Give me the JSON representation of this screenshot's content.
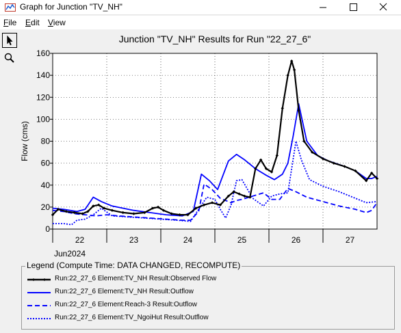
{
  "window": {
    "title": "Graph for Junction \"TV_NH\"",
    "menu": [
      {
        "label": "File",
        "accel": "F",
        "rest": "ile"
      },
      {
        "label": "Edit",
        "accel": "E",
        "rest": "dit"
      },
      {
        "label": "View",
        "accel": "V",
        "rest": "iew"
      }
    ]
  },
  "toolbar": {
    "tools": [
      "pointer-arrow-icon",
      "zoom-magnifier-icon"
    ]
  },
  "colors": {
    "observed": "#000000",
    "series": "#0000ff",
    "grid": "#000000",
    "window_bg": "#f0f0f0",
    "plot_bg": "#ffffff"
  },
  "chart_data": {
    "type": "line",
    "title": "Junction \"TV_NH\" Results for Run \"22_27_6\"",
    "ylabel": "Flow (cms)",
    "xlabel": "",
    "ylim": [
      0,
      160
    ],
    "yticks": [
      0,
      20,
      40,
      60,
      80,
      100,
      120,
      140,
      160
    ],
    "xlim": [
      21.5,
      27.5
    ],
    "x_ticks": [
      22,
      23,
      24,
      25,
      26,
      27
    ],
    "x_tick_labels": [
      "22",
      "23",
      "24",
      "25",
      "26",
      "27"
    ],
    "x_month_label": "Jun2024",
    "grid": true,
    "series": [
      {
        "name": "Run:22_27_6 Element:TV_NH Result:Observed Flow",
        "style": "solid-markers",
        "x": [
          21.5,
          21.6,
          21.75,
          21.9,
          22.05,
          22.15,
          22.25,
          22.35,
          22.45,
          22.6,
          22.8,
          23.0,
          23.2,
          23.35,
          23.45,
          23.55,
          23.7,
          23.85,
          24.0,
          24.15,
          24.3,
          24.45,
          24.6,
          24.75,
          24.85,
          24.95,
          25.05,
          25.15,
          25.25,
          25.35,
          25.45,
          25.55,
          25.65,
          25.75,
          25.85,
          25.92,
          25.97,
          26.05,
          26.15,
          26.3,
          26.5,
          26.7,
          26.9,
          27.1,
          27.3,
          27.4,
          27.5
        ],
        "y": [
          13,
          18,
          16,
          15,
          14,
          16,
          21,
          22,
          19,
          17,
          15,
          14,
          15,
          19,
          20,
          17,
          14,
          13,
          13,
          19,
          22,
          24,
          22,
          30,
          34,
          32,
          30,
          29,
          55,
          63,
          55,
          52,
          67,
          110,
          140,
          153,
          145,
          108,
          80,
          70,
          64,
          60,
          57,
          53,
          44,
          51,
          46
        ]
      },
      {
        "name": "Run:22_27_6 Element:TV_NH Result:Outflow",
        "style": "solid",
        "x": [
          21.5,
          21.7,
          21.95,
          22.1,
          22.25,
          22.4,
          22.6,
          22.8,
          23.0,
          23.3,
          23.6,
          23.9,
          24.1,
          24.25,
          24.4,
          24.55,
          24.75,
          24.9,
          25.05,
          25.25,
          25.45,
          25.6,
          25.75,
          25.85,
          25.95,
          26.05,
          26.2,
          26.4,
          26.6,
          26.9,
          27.1,
          27.3,
          27.4,
          27.5
        ],
        "y": [
          19,
          18,
          16,
          18,
          29,
          25,
          21,
          19,
          17,
          15,
          13,
          12,
          16,
          50,
          44,
          36,
          62,
          68,
          63,
          55,
          49,
          45,
          50,
          60,
          85,
          114,
          80,
          67,
          62,
          57,
          53,
          46,
          46,
          48
        ]
      },
      {
        "name": "Run:22_27_6 Element:Reach-3 Result:Outflow",
        "style": "dashed",
        "x": [
          21.5,
          21.7,
          21.9,
          22.1,
          22.3,
          22.5,
          22.7,
          23.0,
          23.3,
          23.6,
          23.9,
          24.05,
          24.2,
          24.3,
          24.45,
          24.6,
          24.8,
          24.9,
          25.0,
          25.2,
          25.4,
          25.55,
          25.7,
          25.85,
          26.0,
          26.2,
          26.5,
          26.8,
          27.1,
          27.3,
          27.4,
          27.5
        ],
        "y": [
          17,
          16,
          14,
          13,
          12,
          13,
          12,
          11,
          10,
          9,
          8,
          8,
          16,
          41,
          36,
          28,
          24,
          26,
          27,
          30,
          33,
          27,
          27,
          37,
          34,
          29,
          25,
          21,
          18,
          15,
          17,
          24
        ]
      },
      {
        "name": "Run:22_27_6 Element:TV_NgoiHut Result:Outflow",
        "style": "dotted",
        "x": [
          21.5,
          21.7,
          21.85,
          21.95,
          22.1,
          22.25,
          22.4,
          22.6,
          22.9,
          23.2,
          23.5,
          23.8,
          24.05,
          24.2,
          24.35,
          24.5,
          24.6,
          24.7,
          24.8,
          24.9,
          25.0,
          25.2,
          25.4,
          25.55,
          25.7,
          25.85,
          26.0,
          26.1,
          26.25,
          26.5,
          26.8,
          27.1,
          27.3,
          27.5
        ],
        "y": [
          5,
          5,
          4,
          8,
          9,
          13,
          19,
          12,
          11,
          10,
          9,
          8,
          7,
          18,
          29,
          27,
          18,
          10,
          22,
          44,
          45,
          28,
          21,
          30,
          32,
          33,
          80,
          63,
          45,
          39,
          34,
          28,
          24,
          25
        ]
      }
    ]
  },
  "legend": {
    "title": "Legend (Compute Time: DATA CHANGED, RECOMPUTE)",
    "entries": [
      {
        "label": "Run:22_27_6 Element:TV_NH Result:Observed Flow",
        "style": "solid-markers"
      },
      {
        "label": "Run:22_27_6 Element:TV_NH Result:Outflow",
        "style": "solid"
      },
      {
        "label": "Run:22_27_6 Element:Reach-3 Result:Outflow",
        "style": "dashed"
      },
      {
        "label": "Run:22_27_6 Element:TV_NgoiHut Result:Outflow",
        "style": "dotted"
      }
    ]
  }
}
